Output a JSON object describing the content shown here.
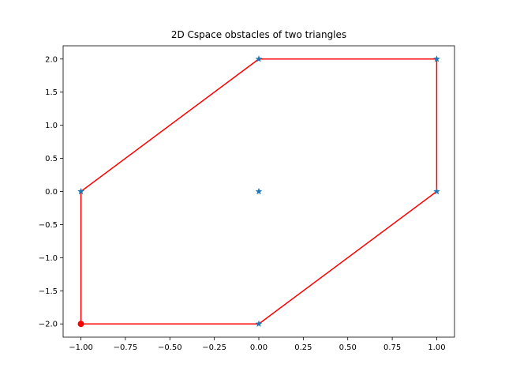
{
  "chart_data": {
    "type": "scatter",
    "title": "2D Cspace obstacles of two triangles",
    "xlabel": "",
    "ylabel": "",
    "xlim": [
      -1.1,
      1.1
    ],
    "ylim": [
      -2.2,
      2.2
    ],
    "grid": false,
    "x_ticks": [
      -1.0,
      -0.75,
      -0.5,
      -0.25,
      0.0,
      0.25,
      0.5,
      0.75,
      1.0
    ],
    "x_tick_labels": [
      "−1.00",
      "−0.75",
      "−0.50",
      "−0.25",
      "0.00",
      "0.25",
      "0.50",
      "0.75",
      "1.00"
    ],
    "y_ticks": [
      2.0,
      1.5,
      1.0,
      0.5,
      0.0,
      -0.5,
      -1.0,
      -1.5,
      -2.0
    ],
    "y_tick_labels": [
      "2.0",
      "1.5",
      "1.0",
      "0.5",
      "0.0",
      "−0.5",
      "−1.0",
      "−1.5",
      "−2.0"
    ],
    "series": [
      {
        "type": "scatter",
        "marker": "star",
        "color": "#1f77b4",
        "points": [
          [
            0,
            2
          ],
          [
            1,
            2
          ],
          [
            -1,
            0
          ],
          [
            0,
            0
          ],
          [
            1,
            0
          ],
          [
            0,
            -2
          ]
        ]
      },
      {
        "type": "line",
        "color": "#ff0000",
        "closed": true,
        "points": [
          [
            -1,
            -2
          ],
          [
            0,
            -2
          ],
          [
            1,
            0
          ],
          [
            1,
            2
          ],
          [
            0,
            2
          ],
          [
            -1,
            0
          ]
        ]
      },
      {
        "type": "scatter",
        "marker": "circle",
        "color": "#ff0000",
        "points": [
          [
            -1,
            -2
          ]
        ]
      }
    ]
  }
}
